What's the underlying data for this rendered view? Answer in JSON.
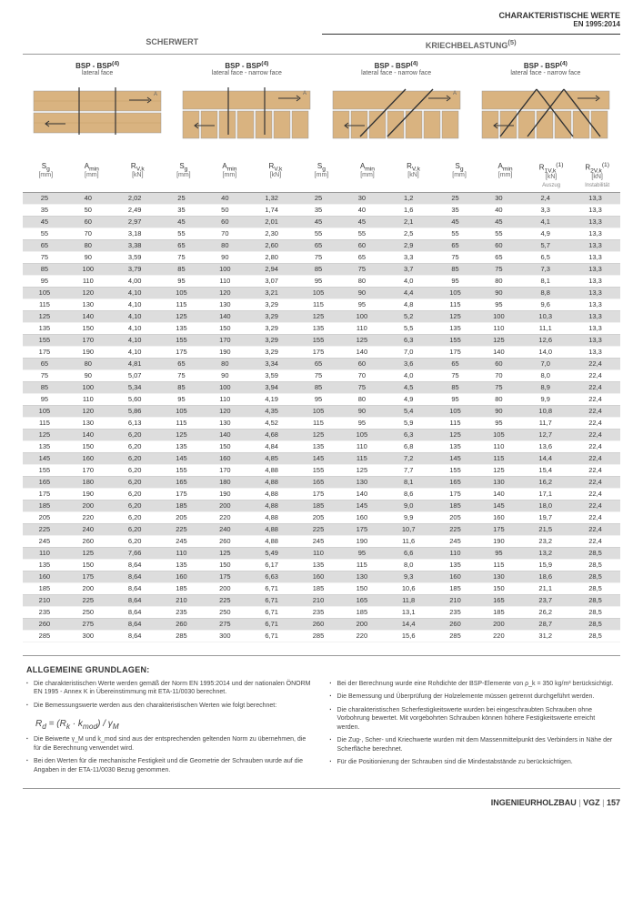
{
  "header": {
    "title": "CHARAKTERISTISCHE WERTE",
    "subtitle": "EN 1995:2014"
  },
  "sections": {
    "left_title": "SCHERWERT",
    "right_title": "KRIECHBELASTUNG",
    "right_sup": "(5)"
  },
  "subheads": [
    {
      "main": "BSP - BSP",
      "sup": "(4)",
      "sub": "lateral face"
    },
    {
      "main": "BSP - BSP",
      "sup": "(4)",
      "sub": "lateral face - narrow face"
    },
    {
      "main": "BSP - BSP",
      "sup": "(4)",
      "sub": "lateral face - narrow face"
    },
    {
      "main": "BSP - BSP",
      "sup": "(4)",
      "sub": "lateral face - narrow face"
    }
  ],
  "colheads": [
    {
      "sym": "S_g",
      "unit": "[mm]"
    },
    {
      "sym": "A_min",
      "unit": "[mm]"
    },
    {
      "sym": "R_V,k",
      "unit": "[kN]"
    },
    {
      "sym": "S_g",
      "unit": "[mm]"
    },
    {
      "sym": "A_min",
      "unit": "[mm]"
    },
    {
      "sym": "R_V,k",
      "unit": "[kN]"
    },
    {
      "sym": "S_g",
      "unit": "[mm]"
    },
    {
      "sym": "A_min",
      "unit": "[mm]"
    },
    {
      "sym": "R_V,k",
      "unit": "[kN]"
    },
    {
      "sym": "S_g",
      "unit": "[mm]"
    },
    {
      "sym": "A_min",
      "unit": "[mm]"
    },
    {
      "sym": "R_1V,k",
      "sup": "(1)",
      "unit": "[kN]",
      "mini": "Auszug"
    },
    {
      "sym": "R_2V,k",
      "sup": "(1)",
      "unit": "[kN]",
      "mini": "Instabilität"
    }
  ],
  "rows": [
    [
      25,
      40,
      "2,02",
      25,
      40,
      "1,32",
      25,
      30,
      "1,2",
      25,
      30,
      "2,4",
      "13,3"
    ],
    [
      35,
      50,
      "2,49",
      35,
      50,
      "1,74",
      35,
      40,
      "1,6",
      35,
      40,
      "3,3",
      "13,3"
    ],
    [
      45,
      60,
      "2,97",
      45,
      60,
      "2,01",
      45,
      45,
      "2,1",
      45,
      45,
      "4,1",
      "13,3"
    ],
    [
      55,
      70,
      "3,18",
      55,
      70,
      "2,30",
      55,
      55,
      "2,5",
      55,
      55,
      "4,9",
      "13,3"
    ],
    [
      65,
      80,
      "3,38",
      65,
      80,
      "2,60",
      65,
      60,
      "2,9",
      65,
      60,
      "5,7",
      "13,3"
    ],
    [
      75,
      90,
      "3,59",
      75,
      90,
      "2,80",
      75,
      65,
      "3,3",
      75,
      65,
      "6,5",
      "13,3"
    ],
    [
      85,
      100,
      "3,79",
      85,
      100,
      "2,94",
      85,
      75,
      "3,7",
      85,
      75,
      "7,3",
      "13,3"
    ],
    [
      95,
      110,
      "4,00",
      95,
      110,
      "3,07",
      95,
      80,
      "4,0",
      95,
      80,
      "8,1",
      "13,3"
    ],
    [
      105,
      120,
      "4,10",
      105,
      120,
      "3,21",
      105,
      90,
      "4,4",
      105,
      90,
      "8,8",
      "13,3"
    ],
    [
      115,
      130,
      "4,10",
      115,
      130,
      "3,29",
      115,
      95,
      "4,8",
      115,
      95,
      "9,6",
      "13,3"
    ],
    [
      125,
      140,
      "4,10",
      125,
      140,
      "3,29",
      125,
      100,
      "5,2",
      125,
      100,
      "10,3",
      "13,3"
    ],
    [
      135,
      150,
      "4,10",
      135,
      150,
      "3,29",
      135,
      110,
      "5,5",
      135,
      110,
      "11,1",
      "13,3"
    ],
    [
      155,
      170,
      "4,10",
      155,
      170,
      "3,29",
      155,
      125,
      "6,3",
      155,
      125,
      "12,6",
      "13,3"
    ],
    [
      175,
      190,
      "4,10",
      175,
      190,
      "3,29",
      175,
      140,
      "7,0",
      175,
      140,
      "14,0",
      "13,3"
    ],
    [
      65,
      80,
      "4,81",
      65,
      80,
      "3,34",
      65,
      60,
      "3,6",
      65,
      60,
      "7,0",
      "22,4"
    ],
    [
      75,
      90,
      "5,07",
      75,
      90,
      "3,59",
      75,
      70,
      "4,0",
      75,
      70,
      "8,0",
      "22,4"
    ],
    [
      85,
      100,
      "5,34",
      85,
      100,
      "3,94",
      85,
      75,
      "4,5",
      85,
      75,
      "8,9",
      "22,4"
    ],
    [
      95,
      110,
      "5,60",
      95,
      110,
      "4,19",
      95,
      80,
      "4,9",
      95,
      80,
      "9,9",
      "22,4"
    ],
    [
      105,
      120,
      "5,86",
      105,
      120,
      "4,35",
      105,
      90,
      "5,4",
      105,
      90,
      "10,8",
      "22,4"
    ],
    [
      115,
      130,
      "6,13",
      115,
      130,
      "4,52",
      115,
      95,
      "5,9",
      115,
      95,
      "11,7",
      "22,4"
    ],
    [
      125,
      140,
      "6,20",
      125,
      140,
      "4,68",
      125,
      105,
      "6,3",
      125,
      105,
      "12,7",
      "22,4"
    ],
    [
      135,
      150,
      "6,20",
      135,
      150,
      "4,84",
      135,
      110,
      "6,8",
      135,
      110,
      "13,6",
      "22,4"
    ],
    [
      145,
      160,
      "6,20",
      145,
      160,
      "4,85",
      145,
      115,
      "7,2",
      145,
      115,
      "14,4",
      "22,4"
    ],
    [
      155,
      170,
      "6,20",
      155,
      170,
      "4,88",
      155,
      125,
      "7,7",
      155,
      125,
      "15,4",
      "22,4"
    ],
    [
      165,
      180,
      "6,20",
      165,
      180,
      "4,88",
      165,
      130,
      "8,1",
      165,
      130,
      "16,2",
      "22,4"
    ],
    [
      175,
      190,
      "6,20",
      175,
      190,
      "4,88",
      175,
      140,
      "8,6",
      175,
      140,
      "17,1",
      "22,4"
    ],
    [
      185,
      200,
      "6,20",
      185,
      200,
      "4,88",
      185,
      145,
      "9,0",
      185,
      145,
      "18,0",
      "22,4"
    ],
    [
      205,
      220,
      "6,20",
      205,
      220,
      "4,88",
      205,
      160,
      "9,9",
      205,
      160,
      "19,7",
      "22,4"
    ],
    [
      225,
      240,
      "6,20",
      225,
      240,
      "4,88",
      225,
      175,
      "10,7",
      225,
      175,
      "21,5",
      "22,4"
    ],
    [
      245,
      260,
      "6,20",
      245,
      260,
      "4,88",
      245,
      190,
      "11,6",
      245,
      190,
      "23,2",
      "22,4"
    ],
    [
      110,
      125,
      "7,66",
      110,
      125,
      "5,49",
      110,
      95,
      "6,6",
      110,
      95,
      "13,2",
      "28,5"
    ],
    [
      135,
      150,
      "8,64",
      135,
      150,
      "6,17",
      135,
      115,
      "8,0",
      135,
      115,
      "15,9",
      "28,5"
    ],
    [
      160,
      175,
      "8,64",
      160,
      175,
      "6,63",
      160,
      130,
      "9,3",
      160,
      130,
      "18,6",
      "28,5"
    ],
    [
      185,
      200,
      "8,64",
      185,
      200,
      "6,71",
      185,
      150,
      "10,6",
      185,
      150,
      "21,1",
      "28,5"
    ],
    [
      210,
      225,
      "8,64",
      210,
      225,
      "6,71",
      210,
      165,
      "11,8",
      210,
      165,
      "23,7",
      "28,5"
    ],
    [
      235,
      250,
      "8,64",
      235,
      250,
      "6,71",
      235,
      185,
      "13,1",
      235,
      185,
      "26,2",
      "28,5"
    ],
    [
      260,
      275,
      "8,64",
      260,
      275,
      "6,71",
      260,
      200,
      "14,4",
      260,
      200,
      "28,7",
      "28,5"
    ],
    [
      285,
      300,
      "8,64",
      285,
      300,
      "6,71",
      285,
      220,
      "15,6",
      285,
      220,
      "31,2",
      "28,5"
    ]
  ],
  "bands": [
    14,
    30
  ],
  "notes": {
    "title": "ALLGEMEINE GRUNDLAGEN:",
    "left": [
      "Die charakteristischen Werte werden gemäß der Norm EN 1995:2014 und der nationalen ÖNORM EN 1995 - Annex K in Übereinstimmung mit ETA-11/0030 berechnet.",
      "Die Bemessungswerte werden aus den charakteristischen Werten wie folgt berechnet:"
    ],
    "formula_html": "R<sub>d</sub> = (R<sub>k</sub> · k<sub>mod</sub>) / γ<sub>M</sub>",
    "left2": [
      "Die Beiwerte γ_M und k_mod sind aus der entsprechenden geltenden Norm zu übernehmen, die für die Berechnung verwendet wird.",
      "Bei den Werten für die mechanische Festigkeit und die Geometrie der Schrauben wurde auf die Angaben in der ETA-11/0030 Bezug genommen."
    ],
    "right": [
      "Bei der Berechnung wurde eine Rohdichte der BSP-Elemente von ρ_k = 350 kg/m³ berücksichtigt.",
      "Die Bemessung und Überprüfung der Holzelemente müssen getrennt durchgeführt werden.",
      "Die charakteristischen Scherfestigkeitswerte wurden bei eingeschraubten Schrauben ohne Vorbohrung bewertet. Mit vorgebohrten Schrauben können höhere Festigkeitswerte erreicht werden.",
      "Die Zug-, Scher- und Kriechwerte wurden mit dem Massenmittelpunkt des Verbinders in Nähe der Scherfläche berechnet.",
      "Für die Positionierung der Schrauben sind die Mindestabstände zu berücksichtigen."
    ]
  },
  "footer": {
    "brand": "INGENIEURHOLZBAU",
    "sep": " | ",
    "code": "VGZ",
    "page": "157"
  },
  "colors": {
    "wood": "#d9b380",
    "wood_dk": "#c29a64",
    "steel": "#555",
    "bg_stripe": "#ddd"
  }
}
